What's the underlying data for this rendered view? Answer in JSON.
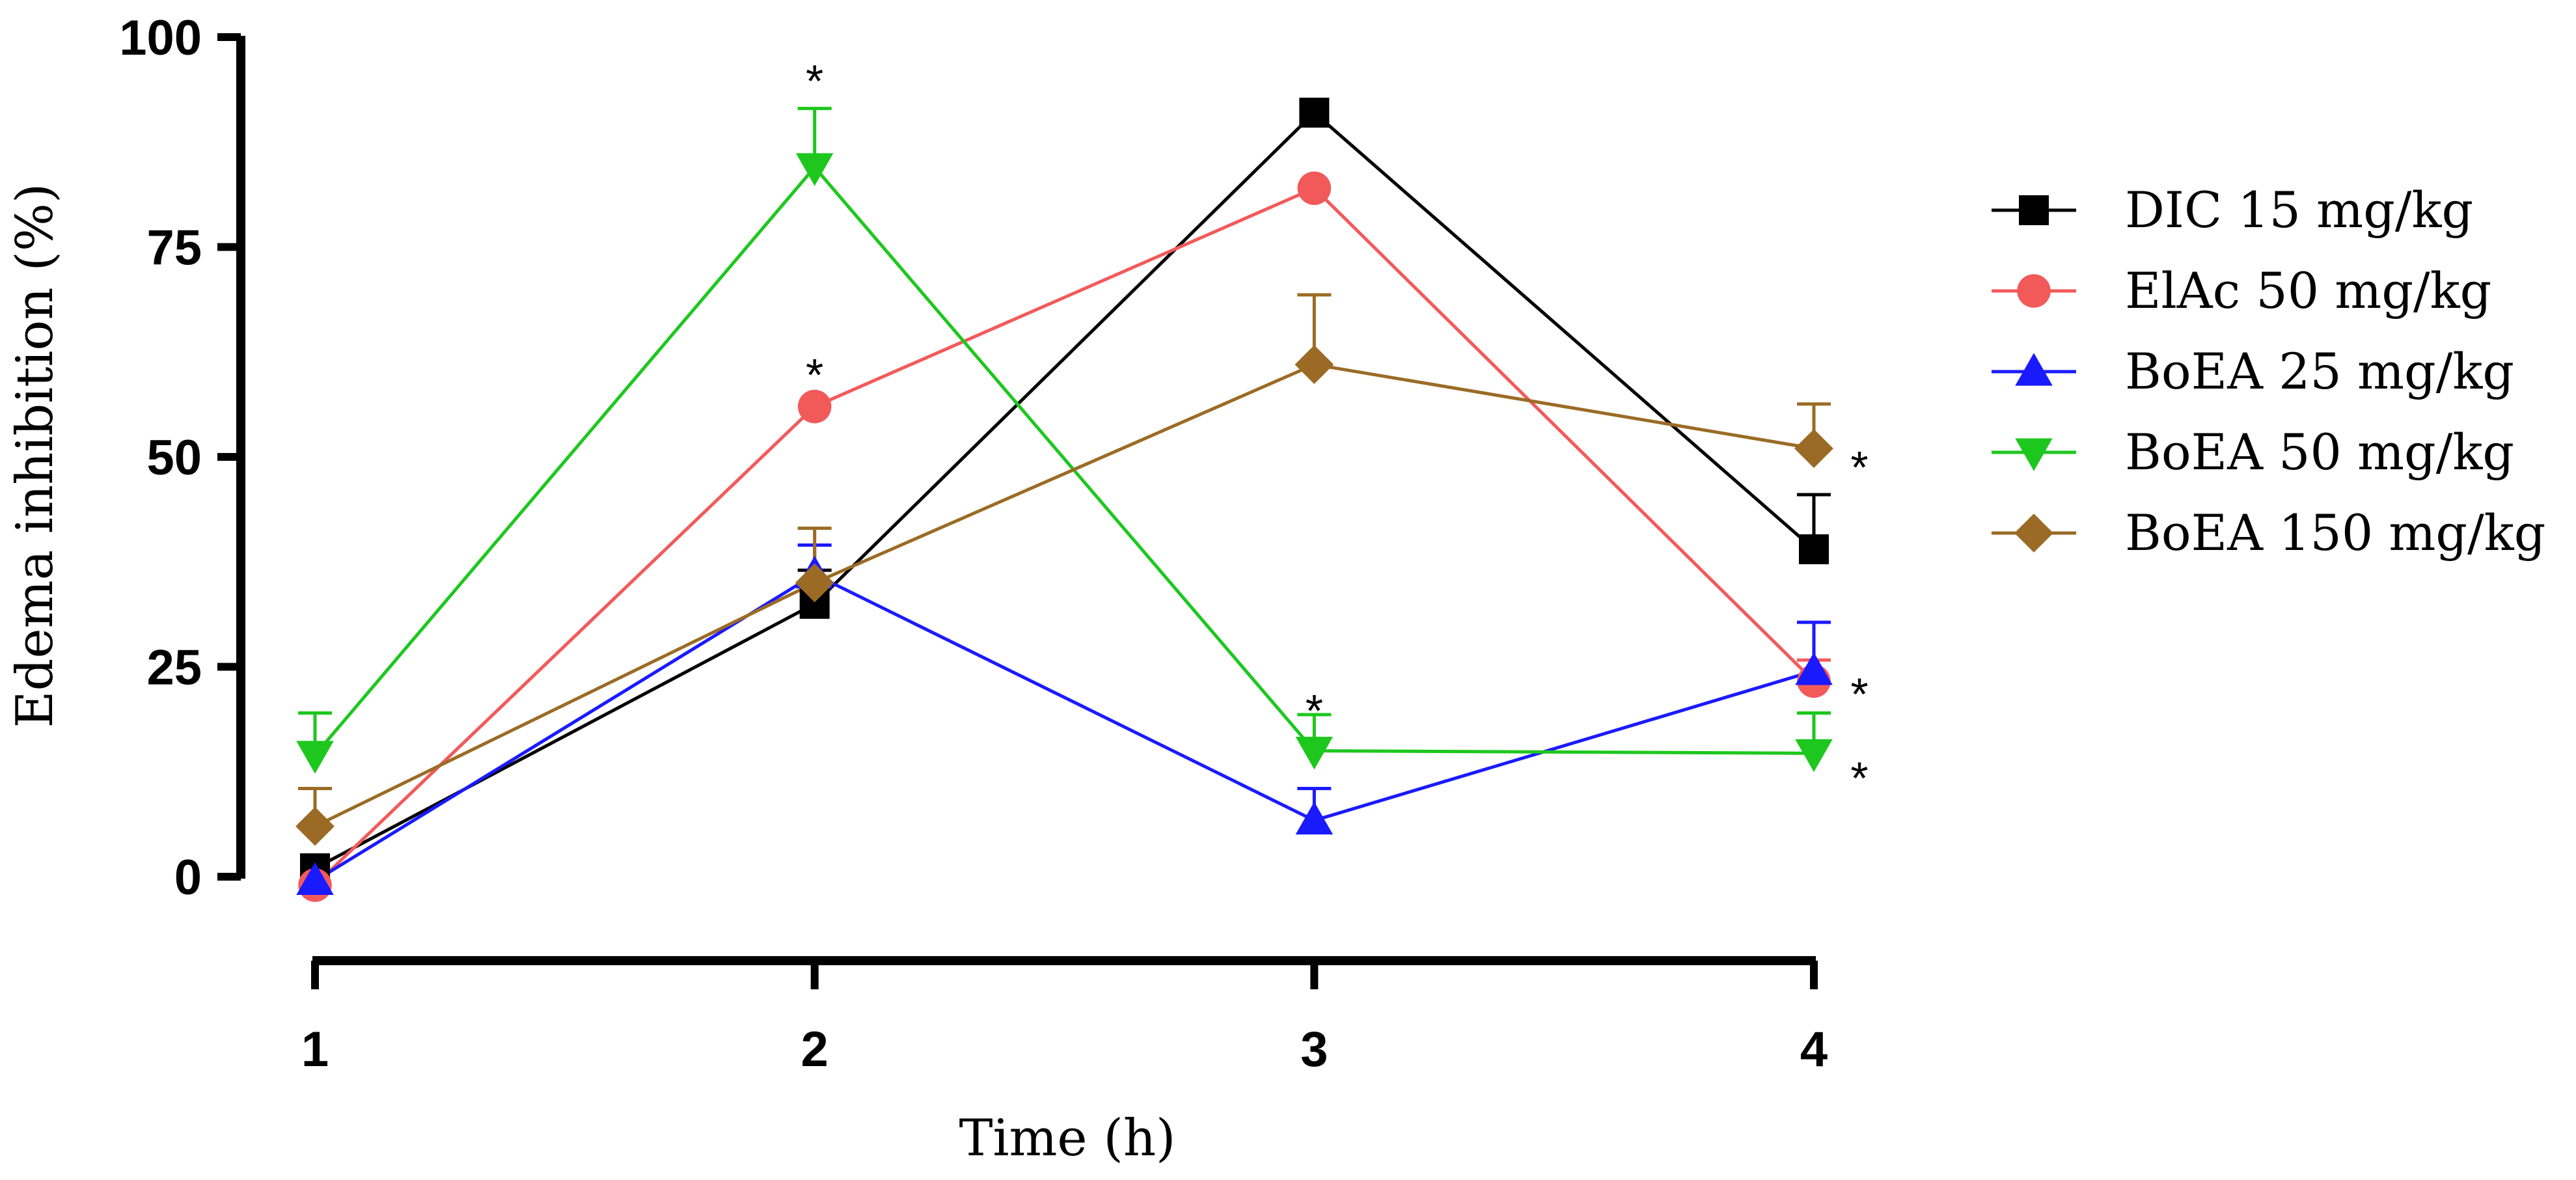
{
  "chart_data": {
    "type": "line",
    "title": "",
    "xlabel": "Time (h)",
    "ylabel": "Edema inhibition (%)",
    "x": [
      1,
      2,
      3,
      4
    ],
    "xticks": [
      "1",
      "2",
      "3",
      "4"
    ],
    "yticks": [
      "0",
      "25",
      "50",
      "75",
      "100"
    ],
    "ylim": [
      0,
      100
    ],
    "xlim": [
      1,
      4
    ],
    "legend_position": "right",
    "series": [
      {
        "name": "DIC 15 mg/kg",
        "color": "#000000",
        "marker": "square",
        "values": [
          1,
          32.5,
          91,
          39
        ],
        "errors": [
          0,
          4,
          0,
          6.5
        ]
      },
      {
        "name": "ElAc 50 mg/kg",
        "color": "#f25a5a",
        "marker": "circle",
        "values": [
          -1,
          56,
          82,
          23.3
        ],
        "errors": [
          0,
          0,
          0,
          2.5
        ]
      },
      {
        "name": "BoEA 25 mg/kg",
        "color": "#1a1aff",
        "marker": "triangle-up",
        "values": [
          -0.5,
          36,
          6.7,
          24.5
        ],
        "errors": [
          0,
          3.5,
          3.8,
          5.8
        ]
      },
      {
        "name": "BoEA 50 mg/kg",
        "color": "#1ec71e",
        "marker": "triangle-down",
        "values": [
          14.5,
          84.5,
          15,
          14.7
        ],
        "errors": [
          5,
          7,
          4.3,
          4.8
        ]
      },
      {
        "name": "BoEA 150 mg/kg",
        "color": "#9b6b25",
        "marker": "diamond",
        "values": [
          6,
          35,
          61,
          51
        ],
        "errors": [
          4.5,
          6.5,
          8.3,
          5.3
        ]
      }
    ],
    "annotations": [
      {
        "text": "*",
        "x": 2,
        "y": 96
      },
      {
        "text": "*",
        "x": 2,
        "y": 61
      },
      {
        "text": "*",
        "x": 3,
        "y": 21
      },
      {
        "text": "*",
        "x": 4,
        "y": 50
      },
      {
        "text": "*",
        "x": 4,
        "y": 23
      },
      {
        "text": "*",
        "x": 4,
        "y": 13
      }
    ]
  }
}
